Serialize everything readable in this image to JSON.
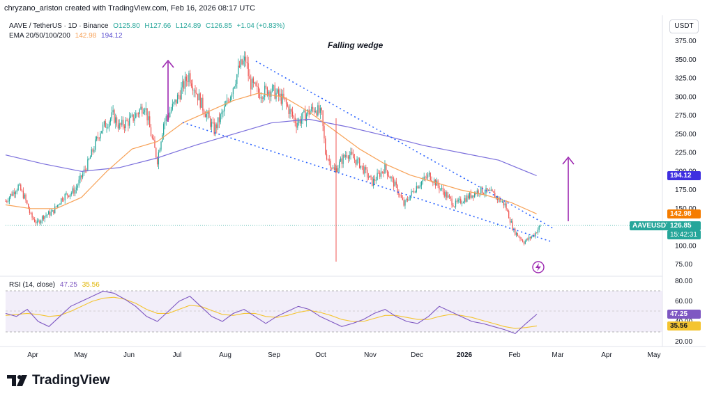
{
  "header": {
    "attribution": "chryzano_ariston created with TradingView.com, Feb 16, 2026 08:17 UTC",
    "currency": "USDT"
  },
  "legend": {
    "symbol": "AAVE / TetherUS · 1D · Binance",
    "open": "O125.80",
    "high": "H127.66",
    "low": "L124.89",
    "close": "C126.85",
    "change": "+1.04 (+0.83%)",
    "ema_label": "EMA 20/50/100/200",
    "ema50": "142.98",
    "ema200": "194.12",
    "rsi_label": "RSI (14, close)",
    "rsi_value": "47.25",
    "rsi_ma": "35.56"
  },
  "colors": {
    "up": "#26a69a",
    "down": "#ef5350",
    "ema50": "#f7a156",
    "ema200": "#7b6fdc",
    "arrow": "#9c27b0",
    "wedge": "#2962ff",
    "rsi": "#7e57c2",
    "rsi_ma": "#f4c430"
  },
  "annotations": {
    "pattern": "Falling wedge"
  },
  "price_tags": {
    "ema200_value": "194.12",
    "ema50_value": "142.98",
    "symbol_label": "AAVEUSDT",
    "last_price": "126.85",
    "countdown": "15:42:31",
    "rsi_value": "47.25",
    "rsi_ma": "35.56"
  },
  "chart_data": {
    "type": "candlestick",
    "title": "AAVE / TetherUS · 1D · Binance",
    "price_axis": {
      "range": [
        60,
        400
      ],
      "ticks": [
        "375.00",
        "350.00",
        "325.00",
        "300.00",
        "275.00",
        "250.00",
        "225.00",
        "200.00",
        "175.00",
        "150.00",
        "125.00",
        "100.00",
        "75.00"
      ]
    },
    "x_axis": {
      "labels": [
        "Apr",
        "May",
        "Jun",
        "Jul",
        "Aug",
        "Sep",
        "Oct",
        "Nov",
        "Dec",
        "2026",
        "Feb",
        "Mar",
        "Apr",
        "May"
      ]
    },
    "close_series": [
      {
        "d": 0,
        "c": 160
      },
      {
        "d": 5,
        "c": 170
      },
      {
        "d": 10,
        "c": 180
      },
      {
        "d": 15,
        "c": 165
      },
      {
        "d": 20,
        "c": 140
      },
      {
        "d": 25,
        "c": 130
      },
      {
        "d": 30,
        "c": 140
      },
      {
        "d": 37,
        "c": 145
      },
      {
        "d": 45,
        "c": 165
      },
      {
        "d": 55,
        "c": 175
      },
      {
        "d": 65,
        "c": 210
      },
      {
        "d": 75,
        "c": 255
      },
      {
        "d": 85,
        "c": 275
      },
      {
        "d": 90,
        "c": 260
      },
      {
        "d": 100,
        "c": 270
      },
      {
        "d": 110,
        "c": 290
      },
      {
        "d": 115,
        "c": 250
      },
      {
        "d": 120,
        "c": 215
      },
      {
        "d": 125,
        "c": 265
      },
      {
        "d": 135,
        "c": 295
      },
      {
        "d": 145,
        "c": 330
      },
      {
        "d": 155,
        "c": 290
      },
      {
        "d": 165,
        "c": 255
      },
      {
        "d": 175,
        "c": 290
      },
      {
        "d": 185,
        "c": 340
      },
      {
        "d": 190,
        "c": 350
      },
      {
        "d": 193,
        "c": 320
      },
      {
        "d": 200,
        "c": 305
      },
      {
        "d": 210,
        "c": 310
      },
      {
        "d": 220,
        "c": 295
      },
      {
        "d": 230,
        "c": 265
      },
      {
        "d": 240,
        "c": 280
      },
      {
        "d": 245,
        "c": 285
      },
      {
        "d": 250,
        "c": 275
      },
      {
        "d": 253,
        "c": 225
      },
      {
        "d": 260,
        "c": 200
      },
      {
        "d": 270,
        "c": 225
      },
      {
        "d": 280,
        "c": 210
      },
      {
        "d": 290,
        "c": 185
      },
      {
        "d": 300,
        "c": 205
      },
      {
        "d": 310,
        "c": 175
      },
      {
        "d": 315,
        "c": 155
      },
      {
        "d": 325,
        "c": 180
      },
      {
        "d": 335,
        "c": 195
      },
      {
        "d": 345,
        "c": 175
      },
      {
        "d": 355,
        "c": 155
      },
      {
        "d": 365,
        "c": 165
      },
      {
        "d": 375,
        "c": 175
      },
      {
        "d": 385,
        "c": 170
      },
      {
        "d": 395,
        "c": 155
      },
      {
        "d": 402,
        "c": 120
      },
      {
        "d": 410,
        "c": 105
      },
      {
        "d": 418,
        "c": 115
      },
      {
        "d": 423,
        "c": 126.85
      }
    ],
    "ema50": [
      {
        "d": 0,
        "c": 155
      },
      {
        "d": 20,
        "c": 150
      },
      {
        "d": 40,
        "c": 150
      },
      {
        "d": 60,
        "c": 165
      },
      {
        "d": 80,
        "c": 200
      },
      {
        "d": 100,
        "c": 230
      },
      {
        "d": 120,
        "c": 240
      },
      {
        "d": 140,
        "c": 265
      },
      {
        "d": 160,
        "c": 280
      },
      {
        "d": 180,
        "c": 295
      },
      {
        "d": 200,
        "c": 305
      },
      {
        "d": 220,
        "c": 300
      },
      {
        "d": 240,
        "c": 280
      },
      {
        "d": 260,
        "c": 255
      },
      {
        "d": 280,
        "c": 230
      },
      {
        "d": 300,
        "c": 210
      },
      {
        "d": 320,
        "c": 195
      },
      {
        "d": 340,
        "c": 185
      },
      {
        "d": 360,
        "c": 175
      },
      {
        "d": 380,
        "c": 168
      },
      {
        "d": 400,
        "c": 158
      },
      {
        "d": 420,
        "c": 142.98
      }
    ],
    "ema200": [
      {
        "d": 0,
        "c": 222
      },
      {
        "d": 30,
        "c": 210
      },
      {
        "d": 60,
        "c": 200
      },
      {
        "d": 90,
        "c": 205
      },
      {
        "d": 120,
        "c": 218
      },
      {
        "d": 150,
        "c": 235
      },
      {
        "d": 180,
        "c": 250
      },
      {
        "d": 210,
        "c": 265
      },
      {
        "d": 240,
        "c": 270
      },
      {
        "d": 270,
        "c": 260
      },
      {
        "d": 300,
        "c": 248
      },
      {
        "d": 330,
        "c": 235
      },
      {
        "d": 360,
        "c": 225
      },
      {
        "d": 390,
        "c": 215
      },
      {
        "d": 420,
        "c": 194.12
      }
    ],
    "rsi": {
      "range": [
        20,
        80
      ],
      "ticks": [
        "80.00",
        "60.00",
        "40.00",
        "20.00"
      ],
      "upper_band": 70,
      "lower_band": 30,
      "values": [
        48,
        45,
        52,
        40,
        35,
        45,
        55,
        60,
        65,
        70,
        68,
        62,
        55,
        45,
        40,
        50,
        60,
        65,
        55,
        45,
        40,
        48,
        52,
        45,
        38,
        45,
        50,
        55,
        52,
        45,
        40,
        35,
        38,
        42,
        48,
        52,
        45,
        40,
        38,
        45,
        55,
        50,
        45,
        40,
        38,
        35,
        32,
        28,
        38,
        47.25
      ],
      "ma": [
        46,
        47,
        48,
        47,
        45,
        46,
        50,
        55,
        60,
        63,
        64,
        62,
        58,
        52,
        48,
        48,
        52,
        56,
        55,
        51,
        47,
        46,
        48,
        48,
        45,
        44,
        46,
        49,
        51,
        49,
        46,
        42,
        40,
        40,
        43,
        46,
        46,
        44,
        42,
        42,
        45,
        47,
        46,
        44,
        41,
        38,
        35,
        33,
        34,
        35.56
      ]
    },
    "pattern": "Falling wedge"
  }
}
